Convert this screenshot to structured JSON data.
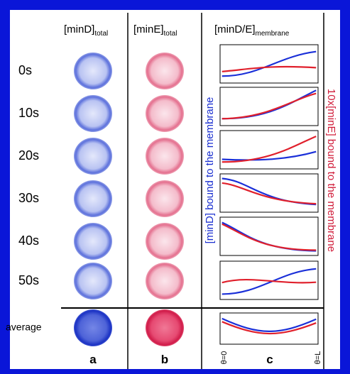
{
  "columns": [
    {
      "label": "[minD]",
      "subscript": "total",
      "letter": "a"
    },
    {
      "label": "[minE]",
      "subscript": "total",
      "letter": "b"
    },
    {
      "label": "[minD/E]",
      "subscript": "membrane",
      "letter": "c"
    }
  ],
  "rows": [
    "0s",
    "10s",
    "20s",
    "30s",
    "40s",
    "50s",
    "average"
  ],
  "axis_labels": {
    "left": "[minD] bound to the membrane",
    "right": "10x[minE] bound to the membrane",
    "start": "θ=0",
    "end": "θ=L"
  }
}
